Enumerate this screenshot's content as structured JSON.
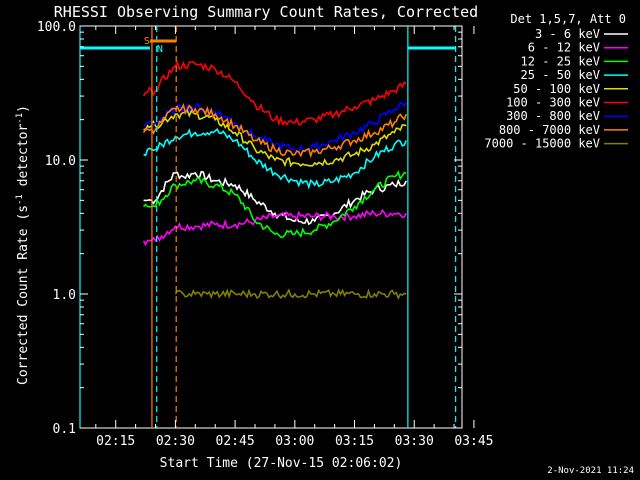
{
  "chart_data": {
    "type": "line",
    "title": "RHESSI Observing Summary Count Rates, Corrected",
    "xlabel": "Start Time (27-Nov-15 02:06:02)",
    "ylabel_main": "Corrected Count Rate (s",
    "ylabel_sup": "-1",
    "ylabel_mid": " detector",
    "ylabel_end": ")",
    "y_scale": "log",
    "ylim": [
      0.1,
      100
    ],
    "y_ticks": [
      "0.1",
      "1.0",
      "10.0",
      "100.0"
    ],
    "xlim_minutes": [
      6.03,
      102
    ],
    "x_ticks": [
      {
        "label": "02:15",
        "minutes": 15
      },
      {
        "label": "02:30",
        "minutes": 30
      },
      {
        "label": "02:45",
        "minutes": 45
      },
      {
        "label": "03:00",
        "minutes": 60
      },
      {
        "label": "03:15",
        "minutes": 75
      },
      {
        "label": "03:30",
        "minutes": 90
      },
      {
        "label": "03:45",
        "minutes": 105
      }
    ],
    "legend_header": "Det 1,5,7, Att 0",
    "legend_position": "top-right, outside plot",
    "series": [
      {
        "name": "3 - 6 keV",
        "color": "#ffffff",
        "x": [
          22,
          23,
          24,
          25,
          30,
          32,
          35,
          40,
          45,
          50,
          55,
          60,
          65,
          70,
          75,
          80,
          85,
          88
        ],
        "y": [
          5.0,
          5.0,
          5.0,
          5.0,
          8.0,
          7.5,
          8.0,
          7.0,
          6.5,
          5.0,
          4.0,
          3.5,
          3.5,
          4.0,
          5.0,
          6.0,
          6.5,
          7.0
        ]
      },
      {
        "name": "6 - 12 keV",
        "color": "#ff00ff",
        "x": [
          22,
          23,
          24,
          25,
          30,
          35,
          40,
          45,
          50,
          55,
          60,
          65,
          70,
          75,
          80,
          85,
          88
        ],
        "y": [
          2.5,
          2.5,
          2.5,
          2.5,
          3.2,
          3.2,
          3.3,
          3.3,
          3.5,
          3.8,
          3.8,
          3.8,
          3.8,
          3.8,
          4.0,
          4.0,
          4.0
        ]
      },
      {
        "name": "12 - 25 keV",
        "color": "#00ff00",
        "x": [
          22,
          23,
          24,
          25,
          30,
          35,
          40,
          45,
          50,
          55,
          60,
          65,
          70,
          75,
          80,
          85,
          88
        ],
        "y": [
          4.5,
          4.5,
          4.5,
          4.5,
          6.5,
          7.0,
          6.5,
          5.5,
          3.5,
          2.8,
          2.8,
          3.0,
          3.5,
          4.5,
          6.0,
          7.5,
          8.0
        ]
      },
      {
        "name": "25 - 50 keV",
        "color": "#00ffff",
        "x": [
          22,
          23,
          24,
          25,
          30,
          35,
          40,
          45,
          50,
          55,
          60,
          65,
          70,
          75,
          80,
          85,
          88
        ],
        "y": [
          11.0,
          12.0,
          12.0,
          12.0,
          15.0,
          16.0,
          16.5,
          14.0,
          10.0,
          8.0,
          7.0,
          6.5,
          7.0,
          8.0,
          10.5,
          13.0,
          14.0
        ]
      },
      {
        "name": "50 - 100 keV",
        "color": "#dddd00",
        "x": [
          22,
          23,
          24,
          25,
          30,
          35,
          40,
          45,
          50,
          55,
          60,
          65,
          70,
          75,
          80,
          85,
          88
        ],
        "y": [
          17.0,
          18.0,
          18.0,
          18.0,
          22.0,
          22.0,
          20.0,
          16.0,
          12.0,
          10.0,
          9.5,
          9.5,
          10.0,
          11.0,
          13.0,
          16.0,
          18.0
        ]
      },
      {
        "name": "100 - 300 keV",
        "color": "#ff0000",
        "x": [
          22,
          23,
          24,
          25,
          30,
          35,
          40,
          45,
          50,
          55,
          60,
          65,
          70,
          75,
          80,
          85,
          88
        ],
        "y": [
          30.0,
          32.0,
          33.0,
          33.0,
          50.0,
          52.0,
          48.0,
          38.0,
          26.0,
          20.0,
          19.0,
          20.0,
          22.0,
          25.0,
          28.0,
          33.0,
          37.0
        ]
      },
      {
        "name": "300 - 800 keV",
        "color": "#0000ff",
        "x": [
          22,
          23,
          24,
          25,
          30,
          35,
          40,
          45,
          50,
          55,
          60,
          65,
          70,
          75,
          80,
          85,
          88
        ],
        "y": [
          18.0,
          19.0,
          19.0,
          19.0,
          24.0,
          25.0,
          23.0,
          19.0,
          15.0,
          13.0,
          12.0,
          12.5,
          14.0,
          16.0,
          19.0,
          24.0,
          27.0
        ]
      },
      {
        "name": "800 - 7000 keV",
        "color": "#ff8000",
        "x": [
          22,
          23,
          24,
          25,
          30,
          35,
          40,
          45,
          50,
          55,
          60,
          65,
          70,
          75,
          80,
          85,
          88
        ],
        "y": [
          16.0,
          17.0,
          17.0,
          17.0,
          24.0,
          24.0,
          22.0,
          18.0,
          14.0,
          12.0,
          11.0,
          11.5,
          12.5,
          14.0,
          16.0,
          19.0,
          22.0
        ]
      },
      {
        "name": "7000 - 15000 keV",
        "color": "#808000",
        "x": [
          30,
          32,
          35,
          38,
          40,
          45,
          50,
          55,
          60,
          65,
          70,
          75,
          80,
          85,
          88
        ],
        "y": [
          1.0,
          1.0,
          1.0,
          1.0,
          1.0,
          1.0,
          1.0,
          1.0,
          1.0,
          1.0,
          1.0,
          1.0,
          1.0,
          1.0,
          1.0
        ]
      }
    ],
    "annotations": {
      "saa_label": "S",
      "night_label": "N",
      "saa_color": "#ff8000",
      "night_color": "#00ffff",
      "saa_bar_minutes": [
        23.6,
        30.2
      ],
      "night_bars_minutes": [
        [
          6.03,
          23.6
        ],
        [
          88.4,
          100.4
        ]
      ],
      "orange_solid_lines": [
        23.6
      ],
      "orange_dashed_lines": [
        30.2
      ],
      "cyan_solid_lines": [
        6.03,
        88.4
      ],
      "cyan_dashed_lines": [
        25.3,
        100.4
      ]
    },
    "timestamp": "2-Nov-2021 11:24"
  }
}
